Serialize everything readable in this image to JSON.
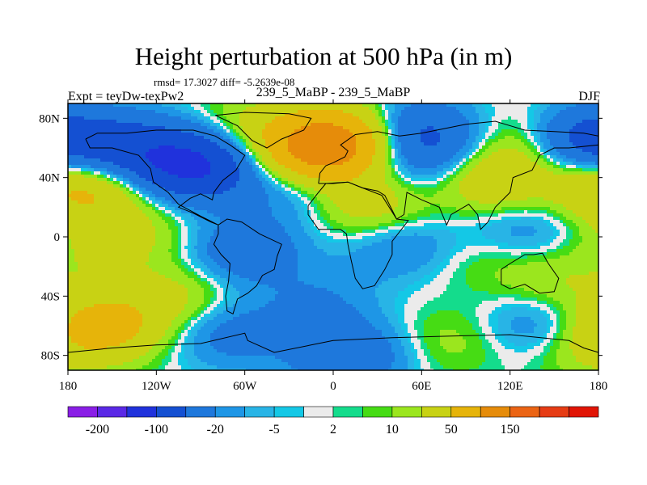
{
  "chart_data": {
    "type": "heatmap",
    "title": "Height perturbation at 500 hPa (in m)",
    "stats": "rmsd= 17.3027 diff= -5.2639e-08",
    "left_label": "Expt = teyDw-texPw2",
    "center_label": "239_5_MaBP - 239_5_MaBP",
    "right_label": "DJF",
    "x_range": [
      -180,
      180
    ],
    "y_range": [
      -90,
      90
    ],
    "x_ticks": [
      -180,
      -120,
      -60,
      0,
      60,
      120,
      180
    ],
    "x_tick_labels": [
      "180",
      "120W",
      "60W",
      "0",
      "60E",
      "120E",
      "180"
    ],
    "y_ticks": [
      80,
      40,
      0,
      -40,
      -80
    ],
    "y_tick_labels": [
      "80N",
      "40N",
      "0",
      "40S",
      "80S"
    ],
    "colorbar": {
      "colors": [
        "#8a1ee6",
        "#5a28e6",
        "#2032dc",
        "#1450d2",
        "#1e78dc",
        "#1e96e6",
        "#28b4e6",
        "#14c8e6",
        "#ebebeb",
        "#14dc8c",
        "#46dc14",
        "#9be61e",
        "#c8d214",
        "#e6b40a",
        "#e68c0a",
        "#eb6414",
        "#e63c14",
        "#e11405"
      ],
      "labels": [
        "-200",
        "-100",
        "-20",
        "-5",
        "2",
        "10",
        "50",
        "150"
      ]
    },
    "field_blobs": [
      {
        "lon": -140,
        "lat": 60,
        "value": -60
      },
      {
        "lon": -95,
        "lat": 48,
        "value": -110
      },
      {
        "lon": -60,
        "lat": 75,
        "value": 20
      },
      {
        "lon": -150,
        "lat": 25,
        "value": 15
      },
      {
        "lon": -170,
        "lat": 35,
        "value": 40
      },
      {
        "lon": -10,
        "lat": 60,
        "value": 120
      },
      {
        "lon": 15,
        "lat": 68,
        "value": 50
      },
      {
        "lon": 55,
        "lat": 70,
        "value": -60
      },
      {
        "lon": 70,
        "lat": 50,
        "value": -30
      },
      {
        "lon": 105,
        "lat": 40,
        "value": 50
      },
      {
        "lon": 140,
        "lat": 65,
        "value": 30
      },
      {
        "lon": 170,
        "lat": 65,
        "value": -80
      },
      {
        "lon": 175,
        "lat": 35,
        "value": 15
      },
      {
        "lon": 25,
        "lat": 20,
        "value": 35
      },
      {
        "lon": -30,
        "lat": 30,
        "value": -20
      },
      {
        "lon": -130,
        "lat": 0,
        "value": 15
      },
      {
        "lon": -160,
        "lat": -5,
        "value": 15
      },
      {
        "lon": -60,
        "lat": -10,
        "value": -40
      },
      {
        "lon": 45,
        "lat": -5,
        "value": -25
      },
      {
        "lon": 130,
        "lat": 5,
        "value": -20
      },
      {
        "lon": 150,
        "lat": -30,
        "value": 20
      },
      {
        "lon": 100,
        "lat": -15,
        "value": 10
      },
      {
        "lon": -155,
        "lat": -60,
        "value": 65
      },
      {
        "lon": -105,
        "lat": -40,
        "value": 25
      },
      {
        "lon": -70,
        "lat": -65,
        "value": -30
      },
      {
        "lon": -10,
        "lat": -45,
        "value": -20
      },
      {
        "lon": 10,
        "lat": -80,
        "value": -45
      },
      {
        "lon": 80,
        "lat": -70,
        "value": 15
      },
      {
        "lon": 140,
        "lat": -60,
        "value": -25
      },
      {
        "lon": 170,
        "lat": -75,
        "value": 20
      }
    ]
  }
}
